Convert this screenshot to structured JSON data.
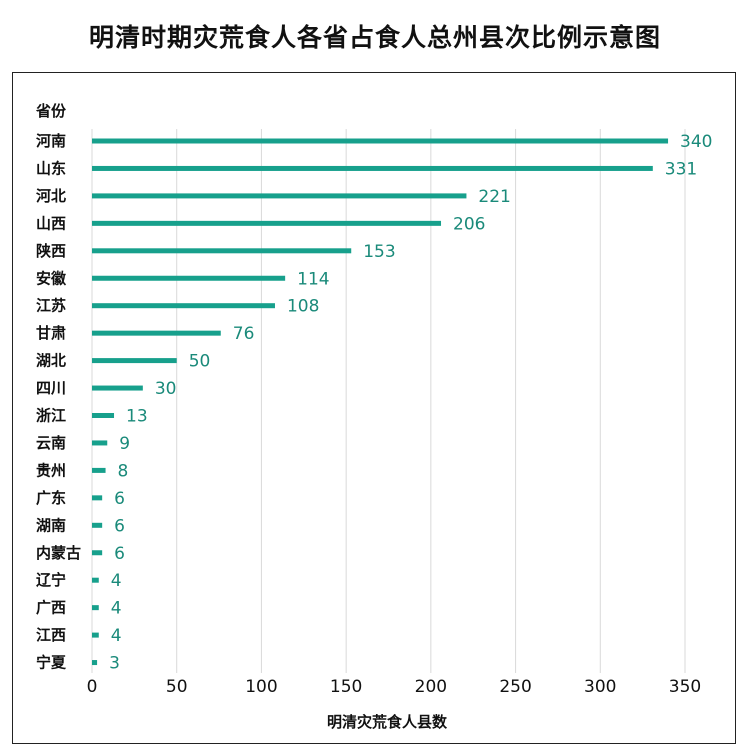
{
  "chart_data": {
    "type": "bar",
    "orientation": "horizontal",
    "title": "明清时期灾荒食人各省占食人总州县次比例示意图",
    "ylabel": "省份",
    "xlabel": "明清灾荒食人县数",
    "categories": [
      "河南",
      "山东",
      "河北",
      "山西",
      "陕西",
      "安徽",
      "江苏",
      "甘肃",
      "湖北",
      "四川",
      "浙江",
      "云南",
      "贵州",
      "广东",
      "湖南",
      "内蒙古",
      "辽宁",
      "广西",
      "江西",
      "宁夏"
    ],
    "values": [
      340,
      331,
      221,
      206,
      153,
      114,
      108,
      76,
      50,
      30,
      13,
      9,
      8,
      6,
      6,
      6,
      4,
      4,
      4,
      3
    ],
    "xlim": [
      0,
      350
    ],
    "xticks": [
      0,
      50,
      100,
      150,
      200,
      250,
      300,
      350
    ],
    "grid": "vertical",
    "bar_color": "#17a08c",
    "label_color": "#1a8a7a"
  }
}
